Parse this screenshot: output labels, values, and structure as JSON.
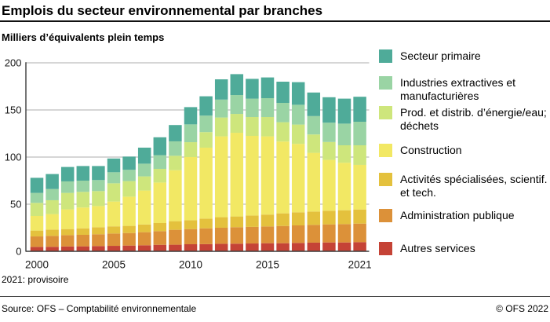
{
  "header": {
    "title": "Emplois du secteur environnemental par branches",
    "subtitle": "Milliers d’équivalents plein temps"
  },
  "chart_data": {
    "type": "bar",
    "stacked": true,
    "stack_order": "bottom-to-top",
    "title": "Emplois du secteur environnemental par branches",
    "ylabel": "Milliers d’équivalents plein temps",
    "xlabel": "",
    "ylim": [
      0,
      200
    ],
    "yticks": [
      0,
      50,
      100,
      150,
      200
    ],
    "grid": true,
    "legend_position": "right",
    "xtick_labels": [
      "2000",
      "2005",
      "2010",
      "2015",
      "2021"
    ],
    "xtick_indices": [
      0,
      5,
      10,
      15,
      21
    ],
    "categories": [
      "2000",
      "2001",
      "2002",
      "2003",
      "2004",
      "2005",
      "2006",
      "2007",
      "2008",
      "2009",
      "2010",
      "2011",
      "2012",
      "2013",
      "2014",
      "2015",
      "2016",
      "2017",
      "2018",
      "2019",
      "2020",
      "2021"
    ],
    "series": [
      {
        "name": "Autres services",
        "color": "#c54336",
        "values": [
          4.7,
          4.8,
          5.2,
          5.3,
          5.6,
          5.8,
          6.1,
          6.4,
          6.9,
          7.0,
          7.5,
          7.6,
          8.0,
          8.1,
          8.3,
          8.6,
          8.6,
          8.9,
          9.2,
          9.4,
          9.4,
          9.7
        ]
      },
      {
        "name": "Administration publique",
        "color": "#dc9139",
        "values": [
          11.1,
          11.6,
          12.0,
          12.2,
          12.5,
          13.1,
          13.3,
          13.9,
          14.5,
          15.8,
          16.1,
          16.8,
          17.0,
          17.5,
          17.6,
          17.8,
          18.3,
          18.6,
          18.9,
          19.2,
          19.5,
          19.7
        ]
      },
      {
        "name": "Activités spécialisées, scientif. et tech.",
        "color": "#e4c13d",
        "values": [
          6.2,
          6.7,
          6.4,
          6.9,
          7.5,
          7.6,
          7.6,
          8.2,
          8.6,
          9.2,
          9.4,
          10.3,
          11.2,
          11.4,
          12.1,
          12.6,
          13.4,
          13.9,
          14.1,
          14.5,
          14.7,
          15.0
        ]
      },
      {
        "name": "Construction",
        "color": "#f2e864",
        "values": [
          15.5,
          16.4,
          20.9,
          22.1,
          22.4,
          26.3,
          31.0,
          36.0,
          43.0,
          54.1,
          67.0,
          75.3,
          85.8,
          88.8,
          84.5,
          83.0,
          76.2,
          72.6,
          62.3,
          53.9,
          50.4,
          47.3
        ]
      },
      {
        "name": "Prod. et distrib. d’énergie/eau; déchets",
        "color": "#cee67c",
        "values": [
          13.9,
          14.7,
          17.5,
          16.6,
          15.9,
          19.4,
          16.5,
          15.0,
          14.5,
          15.3,
          15.8,
          16.5,
          20.0,
          20.0,
          20.0,
          20.5,
          20.5,
          20.5,
          19.5,
          19.0,
          18.5,
          20.8
        ]
      },
      {
        "name": "Industries extractives et manufacturières",
        "color": "#9ad4a4",
        "values": [
          10.6,
          11.9,
          12.2,
          11.9,
          11.7,
          11.7,
          12.0,
          13.5,
          14.5,
          15.3,
          18.9,
          17.5,
          19.0,
          20.0,
          19.5,
          20.0,
          20.5,
          21.0,
          19.5,
          20.5,
          23.0,
          25.0
        ]
      },
      {
        "name": "Secteur primaire",
        "color": "#4fab99",
        "values": [
          16.0,
          15.9,
          15.3,
          15.5,
          14.9,
          14.6,
          14.0,
          17.0,
          19.0,
          17.3,
          18.3,
          20.5,
          21.5,
          22.2,
          21.0,
          22.0,
          22.5,
          24.0,
          25.0,
          27.0,
          26.5,
          26.5
        ]
      }
    ]
  },
  "legend": {
    "items": [
      {
        "label": "Secteur primaire",
        "color": "#4fab99"
      },
      {
        "label": "Industries extractives et manufacturières",
        "color": "#9ad4a4"
      },
      {
        "label": "Prod. et distrib. d’énergie/eau; déchets",
        "color": "#cee67c"
      },
      {
        "label": "Construction",
        "color": "#f2e864"
      },
      {
        "label": "Activités spécialisées, scientif. et tech.",
        "color": "#e4c13d"
      },
      {
        "label": "Administration publique",
        "color": "#dc9139"
      },
      {
        "label": "Autres services",
        "color": "#c54336"
      }
    ]
  },
  "footnote": "2021: provisoire",
  "footer": {
    "source": "Source: OFS – Comptabilité environnementale",
    "copyright": "© OFS 2022"
  }
}
